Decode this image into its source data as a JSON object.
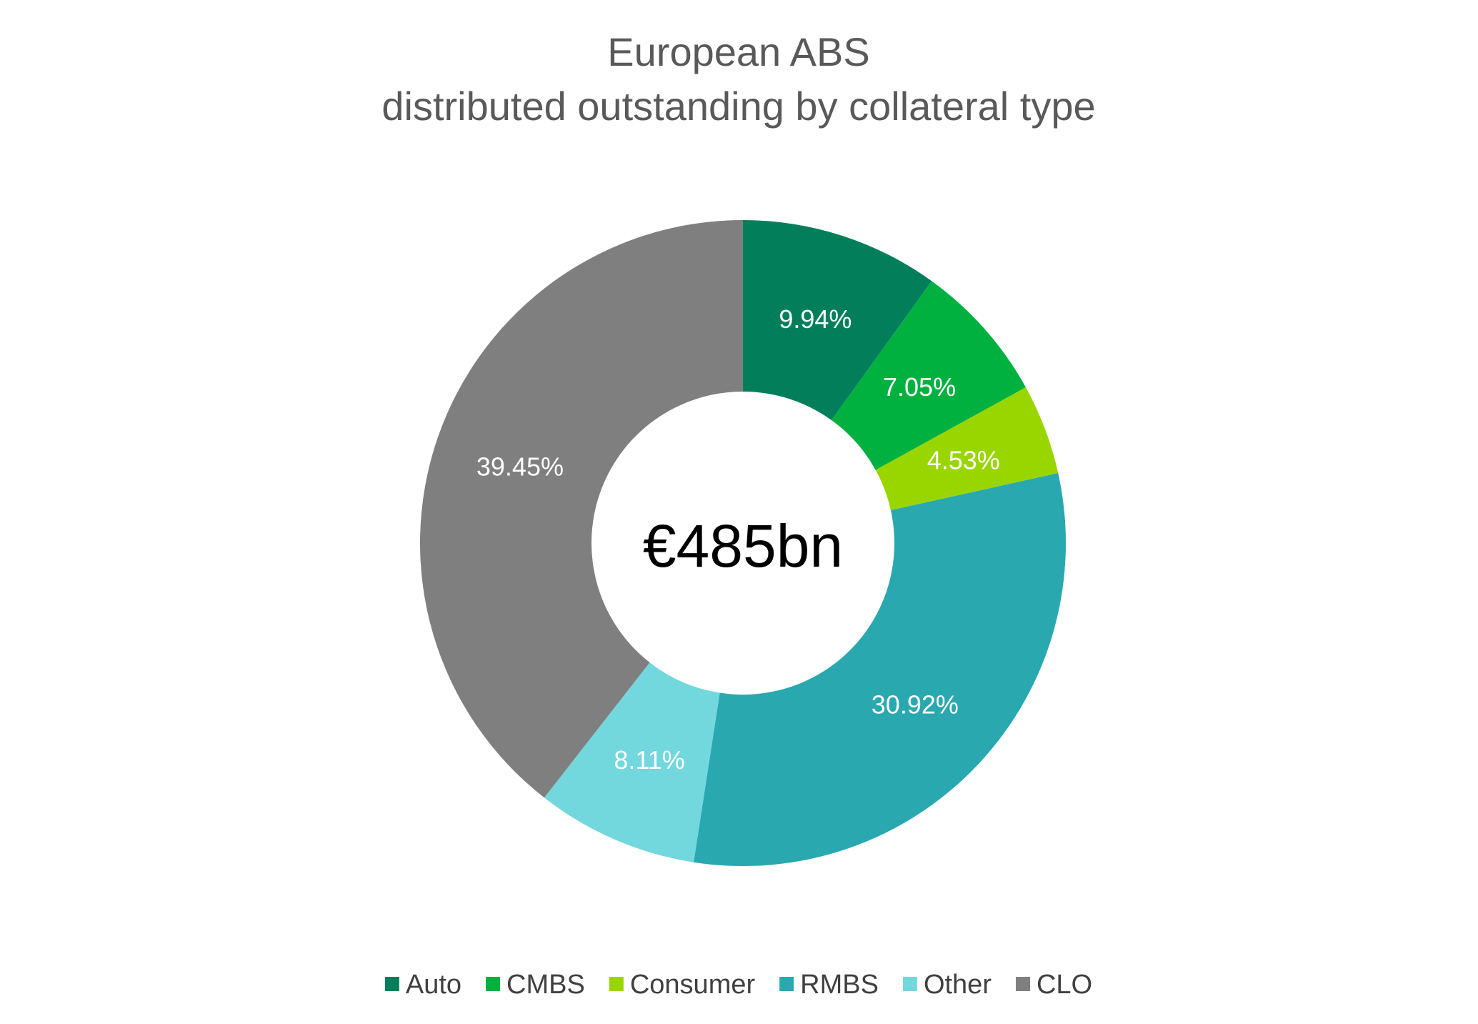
{
  "chart_data": {
    "type": "pie",
    "variant": "donut",
    "title_lines": [
      "European ABS",
      "distributed outstanding by collateral type"
    ],
    "center_label": "€485bn",
    "categories": [
      "Auto",
      "CMBS",
      "Consumer",
      "RMBS",
      "Other",
      "CLO"
    ],
    "values": [
      9.94,
      7.05,
      4.53,
      30.92,
      8.11,
      39.45
    ],
    "data_labels": [
      "9.94%",
      "7.05%",
      "4.53%",
      "30.92%",
      "8.11%",
      "39.45%"
    ],
    "colors": [
      "#027F5A",
      "#00B140",
      "#99D600",
      "#29A8B0",
      "#72D8DE",
      "#7F7F7F"
    ],
    "legend_position": "bottom",
    "start_angle_deg": 0,
    "direction": "clockwise"
  }
}
